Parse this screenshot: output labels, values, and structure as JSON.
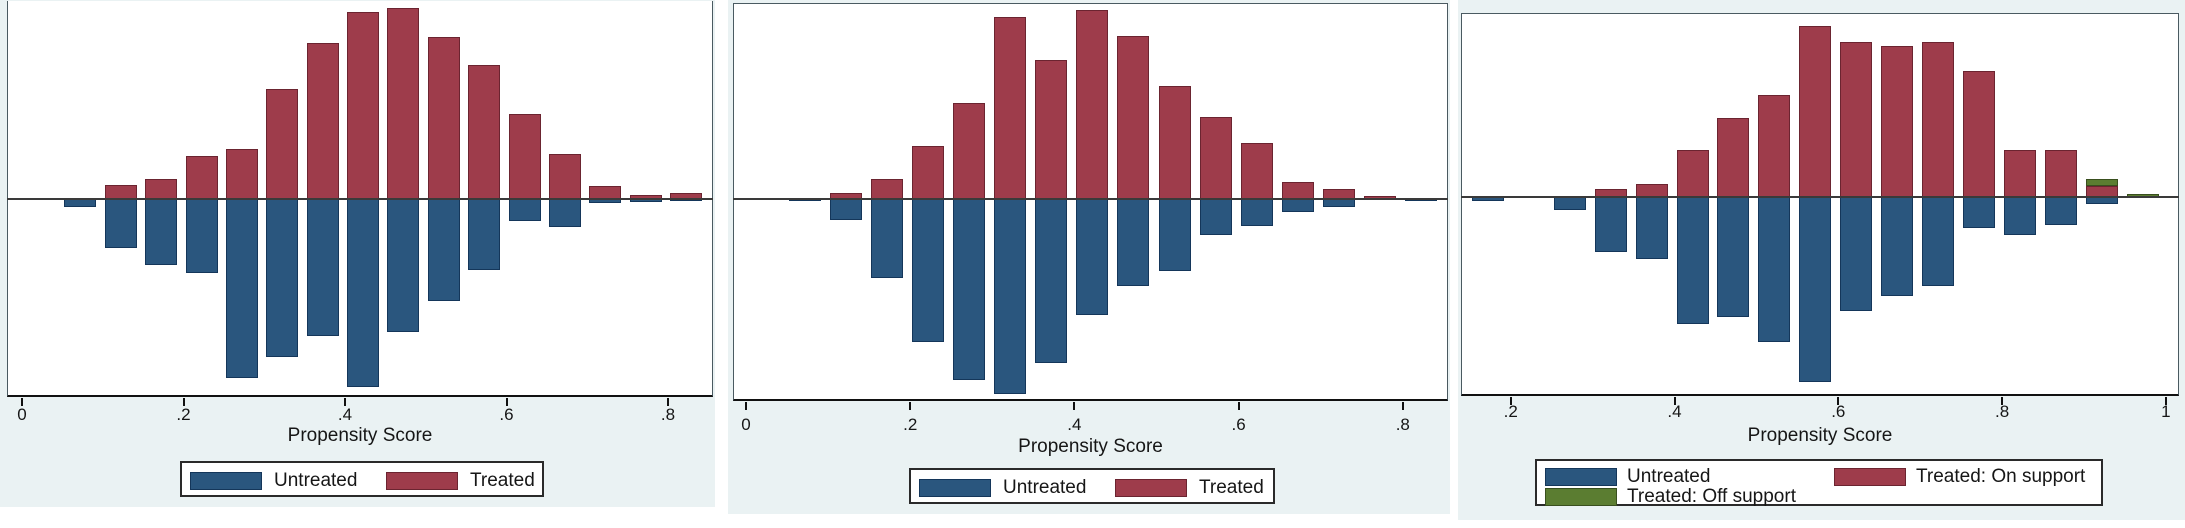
{
  "page": {
    "description": "Three Stata-style propensity-score overlap (mirrored histogram) charts shown side by side",
    "background": "#ffffff",
    "figure_background": "#eaf2f3"
  },
  "style": {
    "untreated_fill": "#2a567e",
    "untreated_border": "#14365a",
    "treated_fill": "#9e3c4b",
    "treated_border": "#6b2430",
    "off_support_fill": "#5b7d31",
    "off_support_border": "#394f1e",
    "axis_color": "#111111",
    "plot_border_color": "#4a5a61",
    "zero_line_color": "#3a3a3a",
    "text_color": "#161616",
    "legend_bg": "#ffffff"
  },
  "chart_data": [
    {
      "type": "bar",
      "subtype": "mirrored-histogram",
      "title": "",
      "xlabel": "Propensity Score",
      "ylabel": "",
      "grid": false,
      "legend_position": "bottom-center",
      "xlim": [
        -0.02,
        0.86
      ],
      "bin_width": 0.05,
      "units": "relative frequency (y axis unlabeled; values are relative bar lengths)",
      "x_ticks": [
        {
          "label": "0",
          "value": 0
        },
        {
          "label": ".2",
          "value": 0.2
        },
        {
          "label": ".4",
          "value": 0.4
        },
        {
          "label": ".6",
          "value": 0.6
        },
        {
          "label": ".8",
          "value": 0.8
        }
      ],
      "legend": [
        {
          "label": "Untreated",
          "series": "untreated"
        },
        {
          "label": "Treated",
          "series": "treated"
        }
      ],
      "bins_start": [
        0.05,
        0.1,
        0.15,
        0.2,
        0.25,
        0.3,
        0.35,
        0.4,
        0.45,
        0.5,
        0.55,
        0.6,
        0.65,
        0.7,
        0.75,
        0.8
      ],
      "series": [
        {
          "name": "Treated",
          "direction": "up",
          "values": [
            0,
            14,
            20,
            43,
            50,
            110,
            156,
            187,
            191,
            162,
            134,
            85,
            45,
            13,
            4,
            6
          ]
        },
        {
          "name": "Untreated",
          "direction": "down",
          "values": [
            8,
            49,
            66,
            74,
            179,
            158,
            137,
            188,
            133,
            102,
            71,
            22,
            28,
            4,
            3,
            2
          ]
        }
      ]
    },
    {
      "type": "bar",
      "subtype": "mirrored-histogram",
      "title": "",
      "xlabel": "Propensity Score",
      "ylabel": "",
      "grid": false,
      "legend_position": "bottom-center",
      "xlim": [
        -0.02,
        0.86
      ],
      "bin_width": 0.05,
      "units": "relative frequency (y axis unlabeled; values are relative bar lengths)",
      "x_ticks": [
        {
          "label": "0",
          "value": 0
        },
        {
          "label": ".2",
          "value": 0.2
        },
        {
          "label": ".4",
          "value": 0.4
        },
        {
          "label": ".6",
          "value": 0.6
        },
        {
          "label": ".8",
          "value": 0.8
        }
      ],
      "legend": [
        {
          "label": "Untreated",
          "series": "untreated"
        },
        {
          "label": "Treated",
          "series": "treated"
        }
      ],
      "bins_start": [
        0.05,
        0.1,
        0.15,
        0.2,
        0.25,
        0.3,
        0.35,
        0.4,
        0.45,
        0.5,
        0.55,
        0.6,
        0.65,
        0.7,
        0.75,
        0.8
      ],
      "series": [
        {
          "name": "Treated",
          "direction": "up",
          "values": [
            0,
            6,
            20,
            53,
            96,
            182,
            139,
            189,
            163,
            113,
            82,
            56,
            17,
            10,
            3,
            0
          ]
        },
        {
          "name": "Untreated",
          "direction": "down",
          "values": [
            2,
            21,
            79,
            143,
            181,
            195,
            164,
            116,
            87,
            72,
            36,
            27,
            13,
            8,
            0,
            2
          ]
        }
      ]
    },
    {
      "type": "bar",
      "subtype": "mirrored-histogram",
      "title": "",
      "xlabel": "Propensity Score",
      "ylabel": "",
      "grid": false,
      "legend_position": "bottom-center",
      "xlim": [
        0.14,
        1.01
      ],
      "bin_width": 0.05,
      "units": "relative frequency (y axis unlabeled; values are relative bar lengths)",
      "x_ticks": [
        {
          "label": ".2",
          "value": 0.2
        },
        {
          "label": ".4",
          "value": 0.4
        },
        {
          "label": ".6",
          "value": 0.6
        },
        {
          "label": ".8",
          "value": 0.8
        },
        {
          "label": "1",
          "value": 1.0
        }
      ],
      "legend": [
        {
          "label": "Untreated",
          "series": "untreated"
        },
        {
          "label": "Treated: On support",
          "series": "treated"
        },
        {
          "label": "Treated: Off support",
          "series": "off_support"
        }
      ],
      "bins_start": [
        0.15,
        0.25,
        0.3,
        0.35,
        0.4,
        0.45,
        0.5,
        0.55,
        0.6,
        0.65,
        0.7,
        0.75,
        0.8,
        0.85,
        0.9,
        0.95
      ],
      "series": [
        {
          "name": "Treated: On support",
          "direction": "up",
          "values": [
            0,
            0,
            8,
            13,
            47,
            79,
            102,
            171,
            155,
            151,
            155,
            126,
            47,
            47,
            11,
            0
          ]
        },
        {
          "name": "Treated: Off support",
          "direction": "up-stacked",
          "values": [
            0,
            0,
            0,
            0,
            0,
            0,
            0,
            0,
            0,
            0,
            0,
            0,
            0,
            0,
            7,
            3
          ]
        },
        {
          "name": "Untreated",
          "direction": "down",
          "values": [
            4,
            13,
            55,
            62,
            127,
            120,
            145,
            185,
            114,
            99,
            89,
            31,
            38,
            28,
            7,
            0
          ]
        }
      ]
    }
  ]
}
